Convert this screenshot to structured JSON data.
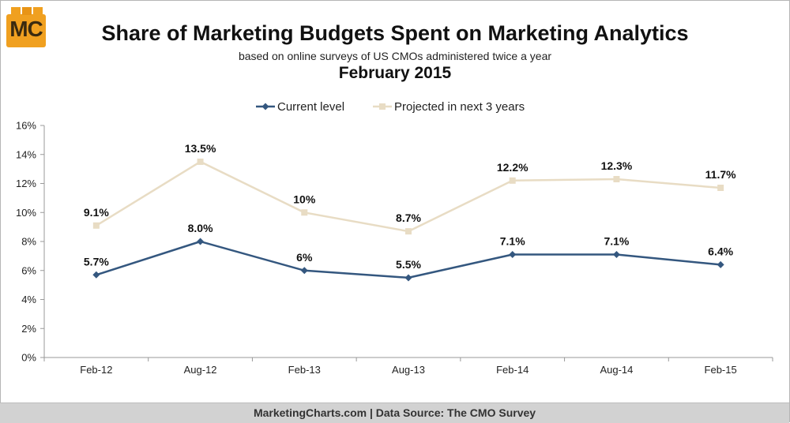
{
  "logo": {
    "text": "MC"
  },
  "header": {
    "title": "Share of Marketing Budgets Spent on Marketing Analytics",
    "subtitle": "based on online surveys of US CMOs administered twice a year",
    "subtitle2": "February 2015"
  },
  "footer": {
    "text": "MarketingCharts.com | Data Source: The CMO Survey"
  },
  "colors": {
    "current": "#34577f",
    "projected": "#e8dcc4",
    "grid_axis": "#999999"
  },
  "chart_data": {
    "type": "line",
    "categories": [
      "Feb-12",
      "Aug-12",
      "Feb-13",
      "Aug-13",
      "Feb-14",
      "Aug-14",
      "Feb-15"
    ],
    "y_ticks": [
      "0%",
      "2%",
      "4%",
      "6%",
      "8%",
      "10%",
      "12%",
      "14%",
      "16%"
    ],
    "ylim": [
      0,
      16
    ],
    "legend_position": "top",
    "grid": false,
    "series": [
      {
        "name": "Current level",
        "values": [
          5.7,
          8.0,
          6,
          5.5,
          7.1,
          7.1,
          6.4
        ],
        "labels": [
          "5.7%",
          "8.0%",
          "6%",
          "5.5%",
          "7.1%",
          "7.1%",
          "6.4%"
        ],
        "color": "#34577f",
        "marker": "diamond"
      },
      {
        "name": "Projected in next 3 years",
        "values": [
          9.1,
          13.5,
          10,
          8.7,
          12.2,
          12.3,
          11.7
        ],
        "labels": [
          "9.1%",
          "13.5%",
          "10%",
          "8.7%",
          "12.2%",
          "12.3%",
          "11.7%"
        ],
        "color": "#e8dcc4",
        "marker": "square"
      }
    ]
  }
}
